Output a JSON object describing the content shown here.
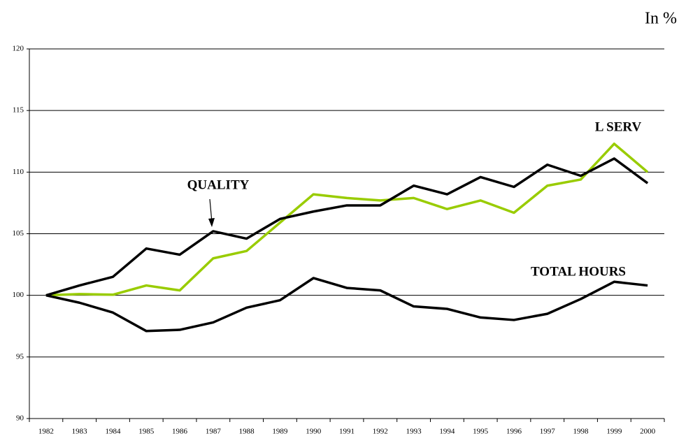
{
  "chart_data": {
    "type": "line",
    "unit_label": "In %",
    "categories": [
      "1982",
      "1983",
      "1984",
      "1985",
      "1986",
      "1987",
      "1988",
      "1989",
      "1990",
      "1991",
      "1992",
      "1993",
      "1994",
      "1995",
      "1996",
      "1997",
      "1998",
      "1999",
      "2000"
    ],
    "series": [
      {
        "name": "QUALITY",
        "color": "#000000",
        "values": [
          100,
          100.8,
          101.5,
          103.8,
          103.3,
          105.2,
          104.6,
          106.2,
          106.8,
          107.3,
          107.3,
          108.9,
          108.2,
          109.6,
          108.8,
          110.6,
          109.7,
          111.1,
          109.1
        ]
      },
      {
        "name": "L SERV",
        "color": "#99cc00",
        "values": [
          100,
          100.1,
          100.05,
          100.8,
          100.4,
          103.0,
          103.6,
          105.9,
          108.2,
          107.9,
          107.7,
          107.9,
          107.0,
          107.7,
          106.7,
          108.9,
          109.4,
          112.3,
          110.0
        ]
      },
      {
        "name": "TOTAL HOURS",
        "color": "#000000",
        "values": [
          100,
          99.4,
          98.6,
          97.1,
          97.2,
          97.8,
          99.0,
          99.6,
          101.4,
          100.6,
          100.4,
          99.1,
          98.9,
          98.2,
          98.0,
          98.5,
          99.7,
          101.1,
          100.8
        ]
      }
    ],
    "ylim": [
      90,
      120
    ],
    "yticks": [
      90,
      95,
      100,
      105,
      110,
      115,
      120
    ],
    "grid": true
  }
}
